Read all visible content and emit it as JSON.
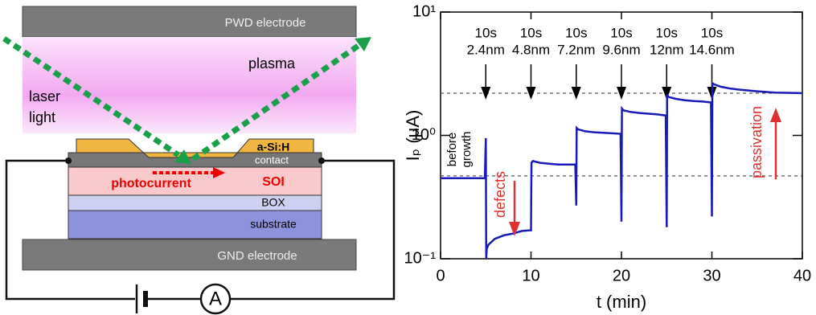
{
  "diagram": {
    "pwd": "PWD electrode",
    "plasma": "plasma",
    "laser": [
      "laser",
      "light"
    ],
    "asih": "a-Si:H",
    "contact": "contact",
    "photocurrent": "photocurrent",
    "soi": "SOI",
    "box": "BOX",
    "substrate": "substrate",
    "gnd": "GND electrode",
    "ammeter": "A"
  },
  "chart_data": {
    "type": "line",
    "xlabel": "t (min)",
    "ylabel": "Iₚ (μA)",
    "xlim": [
      0,
      40
    ],
    "xticks": [
      0,
      10,
      20,
      30,
      40
    ],
    "ylim": [
      0.1,
      10
    ],
    "yticks": [
      {
        "value": 0.1,
        "label": "10⁻¹"
      },
      {
        "value": 1,
        "label": "10⁰"
      },
      {
        "value": 10,
        "label": "10¹"
      }
    ],
    "log_y": true,
    "x": [
      0,
      4.9,
      5.0,
      5.05,
      5.1,
      5.3,
      6,
      7,
      8,
      9,
      9.9,
      10.0,
      10.05,
      10.2,
      11,
      12,
      13,
      14,
      14.9,
      15.0,
      15.05,
      15.2,
      16,
      17,
      18,
      19,
      19.9,
      20.0,
      20.05,
      20.2,
      21,
      22,
      23,
      24,
      24.9,
      25.0,
      25.05,
      25.2,
      26,
      27,
      28,
      29,
      29.9,
      30.0,
      30.05,
      30.2,
      31,
      32,
      33,
      35,
      37,
      40
    ],
    "series": [
      {
        "color": "#1a1ab8",
        "values": [
          0.45,
          0.45,
          0.95,
          0.1,
          0.12,
          0.13,
          0.145,
          0.155,
          0.16,
          0.168,
          0.17,
          0.17,
          0.6,
          0.62,
          0.6,
          0.59,
          0.58,
          0.58,
          0.58,
          0.27,
          1.15,
          1.12,
          1.08,
          1.06,
          1.05,
          1.04,
          1.03,
          0.2,
          1.65,
          1.6,
          1.55,
          1.52,
          1.5,
          1.48,
          1.45,
          0.18,
          2.15,
          2.05,
          1.98,
          1.93,
          1.9,
          1.88,
          1.85,
          0.22,
          2.65,
          2.6,
          2.48,
          2.4,
          2.35,
          2.28,
          2.22,
          2.2
        ]
      }
    ],
    "reference_lines": [
      2.2,
      0.47
    ],
    "steps": [
      {
        "time": 5,
        "label": [
          "10s",
          "2.4nm"
        ]
      },
      {
        "time": 10,
        "label": [
          "10s",
          "4.8nm"
        ]
      },
      {
        "time": 15,
        "label": [
          "10s",
          "7.2nm"
        ]
      },
      {
        "time": 20,
        "label": [
          "10s",
          "9.6nm"
        ]
      },
      {
        "time": 25,
        "label": [
          "10s",
          "12nm"
        ]
      },
      {
        "time": 30,
        "label": [
          "10s",
          "14.6nm"
        ]
      }
    ],
    "annotations": {
      "before": [
        "before",
        "growth"
      ],
      "defects": "defects",
      "passivation": "passivation"
    }
  }
}
